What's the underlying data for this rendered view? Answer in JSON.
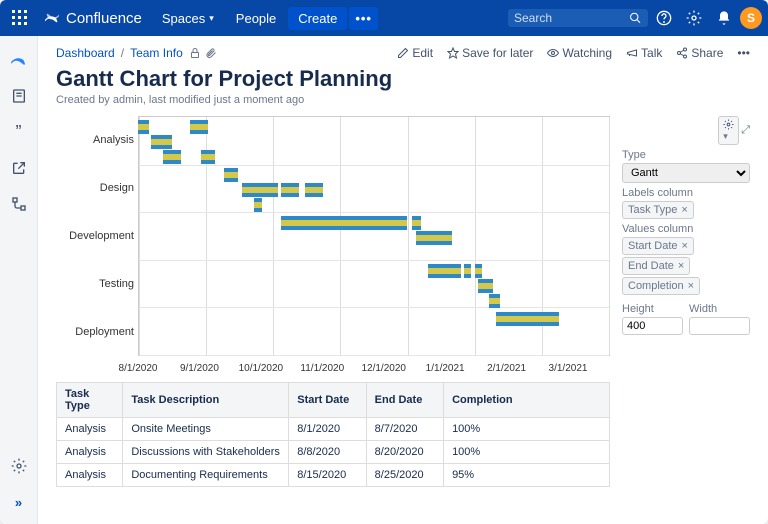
{
  "topnav": {
    "product": "Confluence",
    "links": {
      "spaces": "Spaces",
      "people": "People"
    },
    "create": "Create",
    "search_placeholder": "Search",
    "avatar_initial": "S"
  },
  "breadcrumb": {
    "dashboard": "Dashboard",
    "team": "Team Info"
  },
  "actions": {
    "edit": "Edit",
    "save": "Save for later",
    "watching": "Watching",
    "talk": "Talk",
    "share": "Share"
  },
  "page": {
    "title": "Gantt Chart for Project Planning",
    "byline": "Created by admin, last modified just a moment ago"
  },
  "sidepanel": {
    "type_label": "Type",
    "type_value": "Gantt",
    "labels_col": "Labels column",
    "labels_tag": "Task Type",
    "values_col": "Values column",
    "values_tags": [
      "Start Date",
      "End Date",
      "Completion"
    ],
    "height_label": "Height",
    "height_value": "400",
    "width_label": "Width",
    "width_value": ""
  },
  "gantt": {
    "categories": [
      "Analysis",
      "Design",
      "Development",
      "Testing",
      "Deployment"
    ],
    "x_ticks": [
      "8/1/2020",
      "9/1/2020",
      "10/1/2020",
      "11/1/2020",
      "12/1/2020",
      "1/1/2021",
      "2/1/2021",
      "3/1/2021"
    ],
    "x_domain_days": 240,
    "x_start": "2020-08-01",
    "bar_color_outer": "#2d8ac7",
    "bar_color_inner": "#d4c84a",
    "grid_color": "#dddddd",
    "bars": [
      {
        "row": 0,
        "sub": 0,
        "start": 0,
        "dur": 6
      },
      {
        "row": 0,
        "sub": 0,
        "start": 29,
        "dur": 10
      },
      {
        "row": 0,
        "sub": 1,
        "start": 7,
        "dur": 12
      },
      {
        "row": 0,
        "sub": 2,
        "start": 14,
        "dur": 10
      },
      {
        "row": 0,
        "sub": 2,
        "start": 35,
        "dur": 8
      },
      {
        "row": 1,
        "sub": 0,
        "start": 48,
        "dur": 8
      },
      {
        "row": 1,
        "sub": 1,
        "start": 58,
        "dur": 20
      },
      {
        "row": 1,
        "sub": 1,
        "start": 80,
        "dur": 10
      },
      {
        "row": 1,
        "sub": 1,
        "start": 93,
        "dur": 10
      },
      {
        "row": 1,
        "sub": 2,
        "start": 65,
        "dur": 4
      },
      {
        "row": 2,
        "sub": 0,
        "start": 80,
        "dur": 70
      },
      {
        "row": 2,
        "sub": 0,
        "start": 153,
        "dur": 5
      },
      {
        "row": 2,
        "sub": 1,
        "start": 155,
        "dur": 20
      },
      {
        "row": 3,
        "sub": 0,
        "start": 162,
        "dur": 18
      },
      {
        "row": 3,
        "sub": 0,
        "start": 182,
        "dur": 4
      },
      {
        "row": 3,
        "sub": 0,
        "start": 188,
        "dur": 4
      },
      {
        "row": 3,
        "sub": 1,
        "start": 190,
        "dur": 8
      },
      {
        "row": 3,
        "sub": 2,
        "start": 196,
        "dur": 6
      },
      {
        "row": 4,
        "sub": 0,
        "start": 200,
        "dur": 35
      }
    ]
  },
  "table": {
    "headers": [
      "Task Type",
      "Task Description",
      "Start Date",
      "End Date",
      "Completion"
    ],
    "rows": [
      [
        "Analysis",
        "Onsite Meetings",
        "8/1/2020",
        "8/7/2020",
        "100%"
      ],
      [
        "Analysis",
        "Discussions with Stakeholders",
        "8/8/2020",
        "8/20/2020",
        "100%"
      ],
      [
        "Analysis",
        "Documenting Requirements",
        "8/15/2020",
        "8/25/2020",
        "95%"
      ]
    ]
  }
}
